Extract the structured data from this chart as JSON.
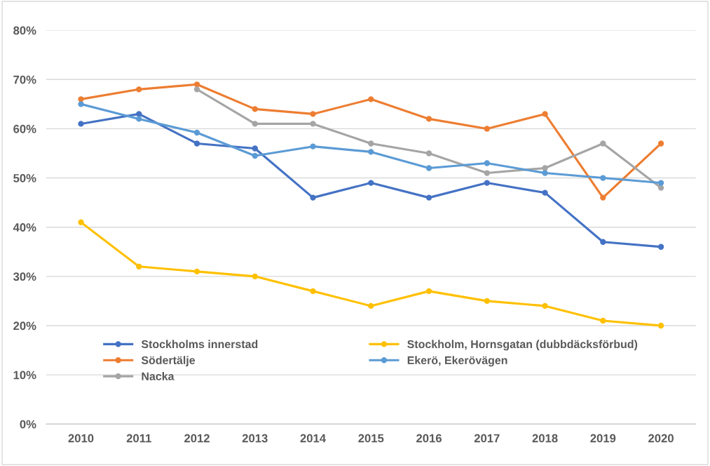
{
  "chart_data": {
    "type": "line",
    "categories": [
      "2010",
      "2011",
      "2012",
      "2013",
      "2014",
      "2015",
      "2016",
      "2017",
      "2018",
      "2019",
      "2020"
    ],
    "series": [
      {
        "name": "Stockholms innerstad",
        "color": "#4472c4",
        "values": [
          61,
          63,
          57,
          56,
          46,
          49,
          46,
          49,
          47,
          37,
          36
        ]
      },
      {
        "name": "Södertälje",
        "color": "#ed7d31",
        "values": [
          66,
          68,
          69,
          64,
          63,
          66,
          62,
          60,
          63,
          46,
          57
        ]
      },
      {
        "name": "Nacka",
        "color": "#a5a5a5",
        "values": [
          null,
          null,
          68,
          61,
          61,
          57,
          55,
          51,
          52,
          57,
          48
        ]
      },
      {
        "name": "Stockholm, Hornsgatan (dubbdäcksförbud)",
        "color": "#ffc000",
        "values": [
          41,
          32,
          31,
          30,
          27,
          24,
          27,
          25,
          24,
          21,
          20
        ]
      },
      {
        "name": "Ekerö, Ekerövägen",
        "color": "#5b9bd5",
        "values": [
          65,
          62,
          59.2,
          54.5,
          56.4,
          55.3,
          52,
          53,
          51,
          50,
          49
        ]
      }
    ],
    "ylim": [
      0,
      80
    ],
    "yticks": [
      {
        "value": 0,
        "label": "0%"
      },
      {
        "value": 10,
        "label": "10%"
      },
      {
        "value": 20,
        "label": "20%"
      },
      {
        "value": 30,
        "label": "30%"
      },
      {
        "value": 40,
        "label": "40%"
      },
      {
        "value": 50,
        "label": "50%"
      },
      {
        "value": 60,
        "label": "60%"
      },
      {
        "value": 70,
        "label": "70%"
      },
      {
        "value": 80,
        "label": "80%"
      }
    ],
    "grid": "y",
    "legend": "bottom",
    "marker": "circle",
    "line_style": "solid"
  }
}
